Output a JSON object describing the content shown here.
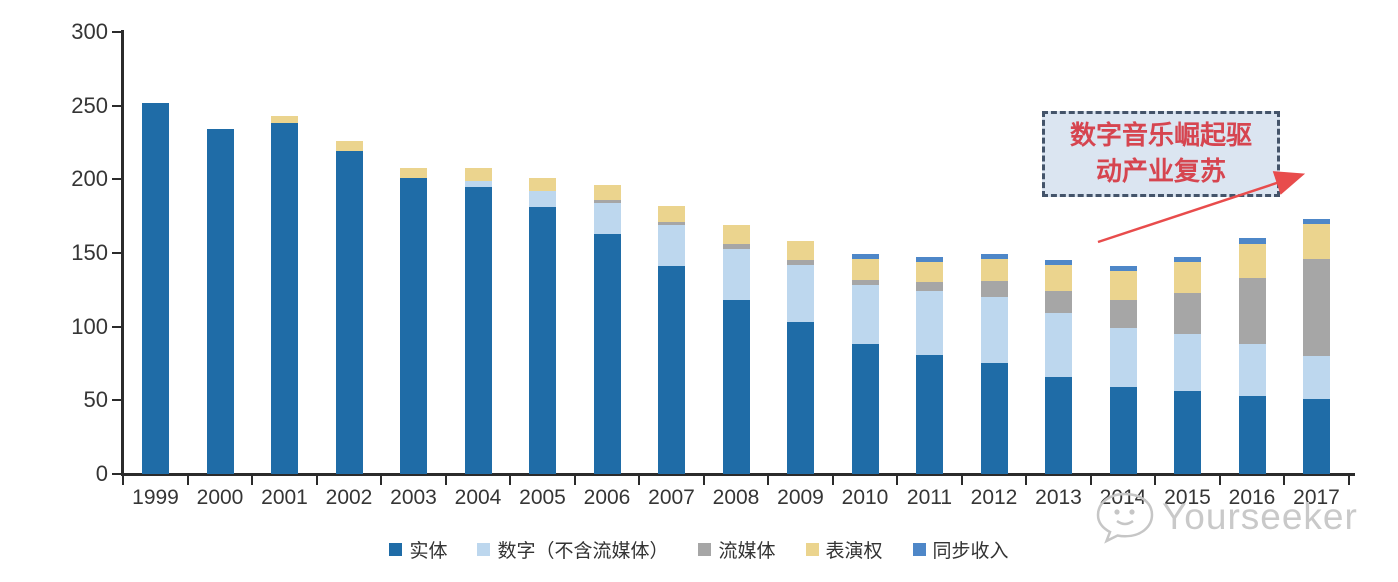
{
  "annotation": {
    "line1": "数字音乐崛起驱",
    "line2": "动产业复苏",
    "border_color": "#44546a",
    "fill_color": "#dbe5f1",
    "text_color": "#d64550",
    "arrow_color": "#e84c4c"
  },
  "watermark": {
    "text": "Yourseeker",
    "icon": "chat-bubble-face-icon",
    "color": "#c9c9c9"
  },
  "chart_data": {
    "type": "bar",
    "stacked": true,
    "categories": [
      "1999",
      "2000",
      "2001",
      "2002",
      "2003",
      "2004",
      "2005",
      "2006",
      "2007",
      "2008",
      "2009",
      "2010",
      "2011",
      "2012",
      "2013",
      "2014",
      "2015",
      "2016",
      "2017"
    ],
    "series": [
      {
        "name": "实体",
        "color": "#1f6ca7",
        "values": [
          252,
          234,
          238,
          219,
          201,
          195,
          181,
          163,
          141,
          118,
          103,
          88,
          81,
          75,
          66,
          59,
          56,
          53,
          51
        ]
      },
      {
        "name": "数字（不含流媒体）",
        "color": "#bdd7ee",
        "values": [
          0,
          0,
          0,
          0,
          0,
          4,
          11,
          21,
          28,
          35,
          39,
          40,
          43,
          45,
          43,
          40,
          39,
          35,
          29
        ]
      },
      {
        "name": "流媒体",
        "color": "#a6a6a6",
        "values": [
          0,
          0,
          0,
          0,
          0,
          0,
          0,
          2,
          2,
          3,
          3,
          4,
          6,
          11,
          15,
          19,
          28,
          45,
          66
        ]
      },
      {
        "name": "表演权",
        "color": "#ebd48e",
        "values": [
          0,
          0,
          5,
          7,
          7,
          9,
          9,
          10,
          11,
          13,
          13,
          14,
          14,
          15,
          18,
          20,
          21,
          23,
          24
        ]
      },
      {
        "name": "同步收入",
        "color": "#4e87c8",
        "values": [
          0,
          0,
          0,
          0,
          0,
          0,
          0,
          0,
          0,
          0,
          0,
          3,
          3,
          3,
          3,
          3,
          3,
          4,
          3
        ]
      }
    ],
    "totals": [
      252,
      234,
      243,
      226,
      208,
      208,
      201,
      196,
      182,
      169,
      158,
      149,
      147,
      149,
      145,
      141,
      147,
      160,
      173
    ],
    "title": "",
    "xlabel": "",
    "ylabel": "",
    "ylim": [
      0,
      300
    ],
    "yticks": [
      0,
      50,
      100,
      150,
      200,
      250,
      300
    ],
    "grid": false,
    "legend_position": "bottom"
  }
}
